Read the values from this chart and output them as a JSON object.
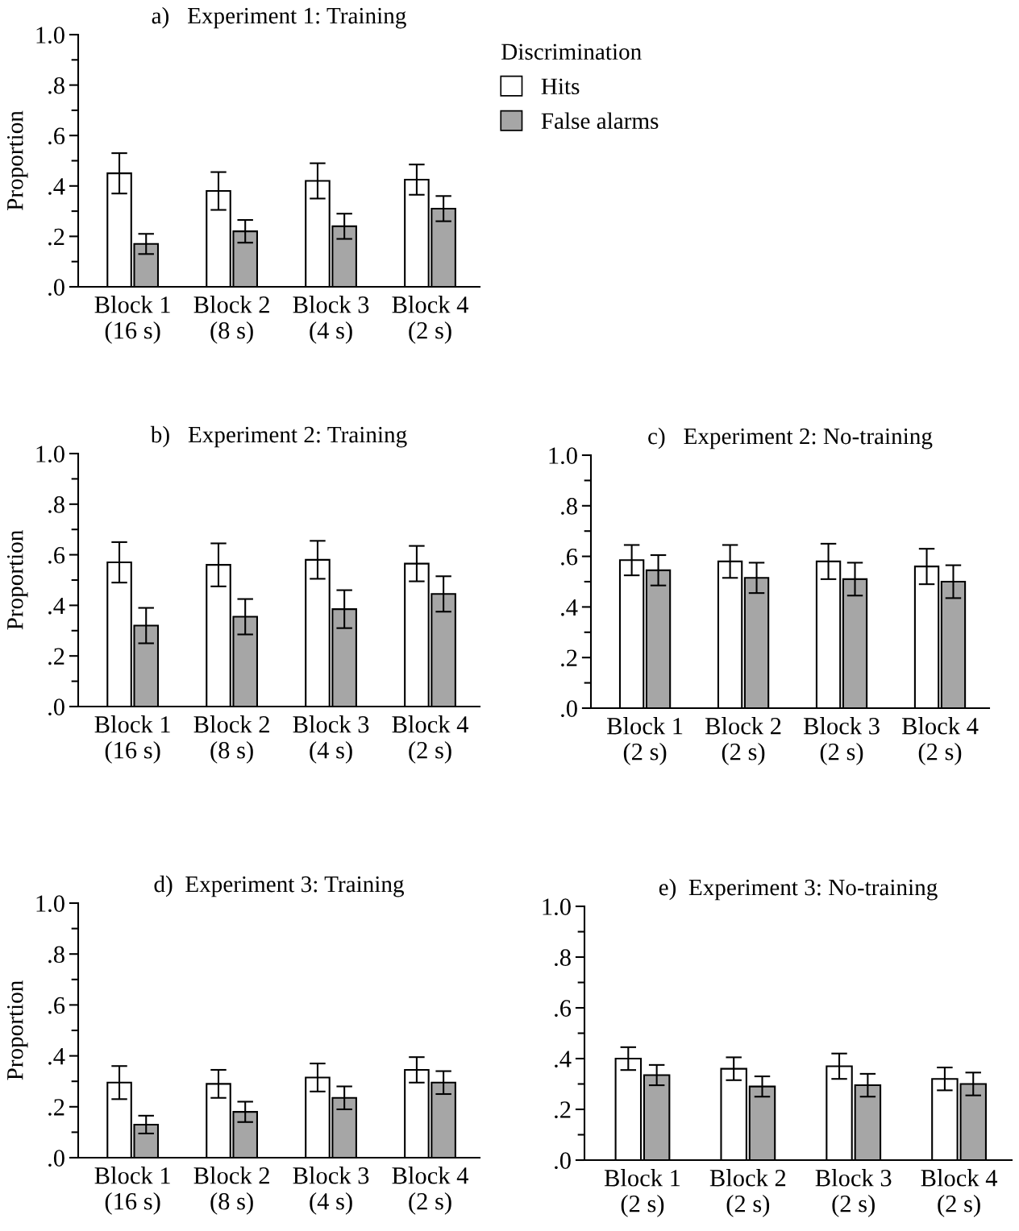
{
  "chart_data": [
    {
      "type": "bar",
      "title": "a)   Experiment 1: Training",
      "ylabel": "Proportion",
      "legend_title": "Discrimination",
      "legend": "right",
      "categories": [
        "Block 1\n(16 s)",
        "Block 2\n(8 s)",
        "Block 3\n(4 s)",
        "Block 4\n(2 s)"
      ],
      "series": [
        {
          "name": "Hits",
          "color": "#ffffff",
          "values": [
            0.45,
            0.38,
            0.42,
            0.425
          ],
          "errors": [
            0.08,
            0.075,
            0.07,
            0.06
          ]
        },
        {
          "name": "False alarms",
          "color": "#a6a6a6",
          "values": [
            0.17,
            0.22,
            0.24,
            0.31
          ],
          "errors": [
            0.04,
            0.045,
            0.05,
            0.05
          ]
        }
      ],
      "ylim": [
        0,
        1
      ],
      "yticks": [
        {
          "value": 0,
          "label": ".0"
        },
        {
          "value": 0.2,
          "label": ".2"
        },
        {
          "value": 0.4,
          "label": ".4"
        },
        {
          "value": 0.6,
          "label": ".6"
        },
        {
          "value": 0.8,
          "label": ".8"
        },
        {
          "value": 1,
          "label": "1.0"
        }
      ]
    },
    {
      "type": "bar",
      "title": "b)   Experiment 2: Training",
      "ylabel": "Proportion",
      "categories": [
        "Block 1\n(16 s)",
        "Block 2\n(8 s)",
        "Block 3\n(4 s)",
        "Block 4\n(2 s)"
      ],
      "series": [
        {
          "color": "#ffffff",
          "values": [
            0.57,
            0.56,
            0.58,
            0.565
          ],
          "errors": [
            0.08,
            0.085,
            0.075,
            0.07
          ]
        },
        {
          "color": "#a6a6a6",
          "values": [
            0.32,
            0.355,
            0.385,
            0.445
          ],
          "errors": [
            0.07,
            0.07,
            0.075,
            0.07
          ]
        }
      ],
      "ylim": [
        0,
        1
      ],
      "yticks": [
        {
          "value": 0,
          "label": ".0"
        },
        {
          "value": 0.2,
          "label": ".2"
        },
        {
          "value": 0.4,
          "label": ".4"
        },
        {
          "value": 0.6,
          "label": ".6"
        },
        {
          "value": 0.8,
          "label": ".8"
        },
        {
          "value": 1,
          "label": "1.0"
        }
      ]
    },
    {
      "type": "bar",
      "title": "c)   Experiment 2: No-training",
      "categories": [
        "Block 1\n(2 s)",
        "Block 2\n(2 s)",
        "Block 3\n(2 s)",
        "Block 4\n(2 s)"
      ],
      "series": [
        {
          "color": "#ffffff",
          "values": [
            0.585,
            0.58,
            0.58,
            0.56
          ],
          "errors": [
            0.06,
            0.065,
            0.07,
            0.07
          ]
        },
        {
          "color": "#a6a6a6",
          "values": [
            0.545,
            0.515,
            0.51,
            0.5
          ],
          "errors": [
            0.06,
            0.06,
            0.065,
            0.065
          ]
        }
      ],
      "ylim": [
        0,
        1
      ],
      "yticks": [
        {
          "value": 0,
          "label": ".0"
        },
        {
          "value": 0.2,
          "label": ".2"
        },
        {
          "value": 0.4,
          "label": ".4"
        },
        {
          "value": 0.6,
          "label": ".6"
        },
        {
          "value": 0.8,
          "label": ".8"
        },
        {
          "value": 1,
          "label": "1.0"
        }
      ]
    },
    {
      "type": "bar",
      "title": "d)  Experiment 3: Training",
      "ylabel": "Proportion",
      "categories": [
        "Block 1\n(16 s)",
        "Block 2\n(8 s)",
        "Block 3\n(4 s)",
        "Block 4\n(2 s)"
      ],
      "series": [
        {
          "color": "#ffffff",
          "values": [
            0.295,
            0.29,
            0.315,
            0.345
          ],
          "errors": [
            0.065,
            0.055,
            0.055,
            0.05
          ]
        },
        {
          "color": "#a6a6a6",
          "values": [
            0.13,
            0.18,
            0.235,
            0.295
          ],
          "errors": [
            0.035,
            0.04,
            0.045,
            0.045
          ]
        }
      ],
      "ylim": [
        0,
        1
      ],
      "yticks": [
        {
          "value": 0,
          "label": ".0"
        },
        {
          "value": 0.2,
          "label": ".2"
        },
        {
          "value": 0.4,
          "label": ".4"
        },
        {
          "value": 0.6,
          "label": ".6"
        },
        {
          "value": 0.8,
          "label": ".8"
        },
        {
          "value": 1,
          "label": "1.0"
        }
      ]
    },
    {
      "type": "bar",
      "title": "e)  Experiment 3: No-training",
      "categories": [
        "Block 1\n(2 s)",
        "Block 2\n(2 s)",
        "Block 3\n(2 s)",
        "Block 4\n(2 s)"
      ],
      "series": [
        {
          "color": "#ffffff",
          "values": [
            0.4,
            0.36,
            0.37,
            0.32
          ],
          "errors": [
            0.045,
            0.045,
            0.05,
            0.045
          ]
        },
        {
          "color": "#a6a6a6",
          "values": [
            0.335,
            0.29,
            0.295,
            0.3
          ],
          "errors": [
            0.04,
            0.04,
            0.045,
            0.045
          ]
        }
      ],
      "ylim": [
        0,
        1
      ],
      "yticks": [
        {
          "value": 0,
          "label": ".0"
        },
        {
          "value": 0.2,
          "label": ".2"
        },
        {
          "value": 0.4,
          "label": ".4"
        },
        {
          "value": 0.6,
          "label": ".6"
        },
        {
          "value": 0.8,
          "label": ".8"
        },
        {
          "value": 1,
          "label": "1.0"
        }
      ]
    }
  ]
}
